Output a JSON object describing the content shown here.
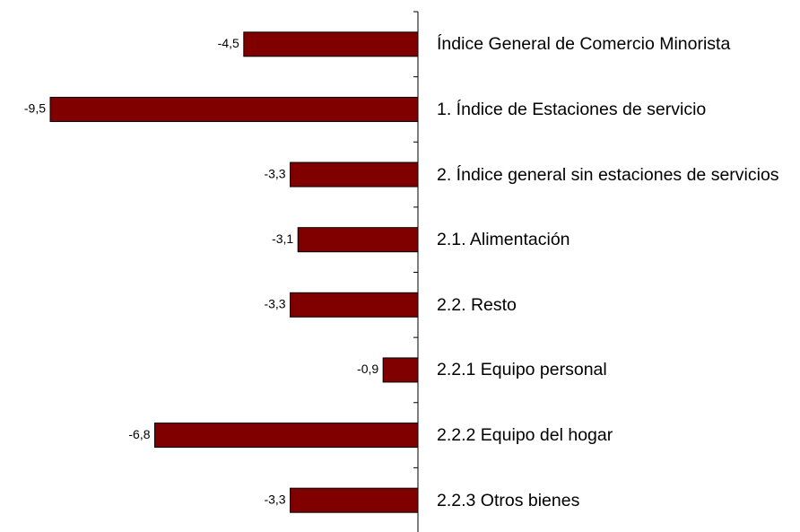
{
  "chart_data": {
    "type": "bar",
    "orientation": "horizontal",
    "categories": [
      "Índice General de Comercio Minorista",
      "1. Índice de Estaciones de servicio",
      "2. Índice general sin estaciones de servicios",
      "2.1. Alimentación",
      "2.2. Resto",
      "2.2.1 Equipo personal",
      "2.2.2 Equipo del hogar",
      "2.2.3 Otros bienes"
    ],
    "values": [
      -4.5,
      -9.5,
      -3.3,
      -3.1,
      -3.3,
      -0.9,
      -6.8,
      -3.3
    ],
    "value_labels": [
      "-4,5",
      "-9,5",
      "-3,3",
      "-3,1",
      "-3,3",
      "-0,9",
      "-6,8",
      "-3,3"
    ],
    "color": "#800000",
    "xlim": [
      -9.5,
      0
    ]
  }
}
